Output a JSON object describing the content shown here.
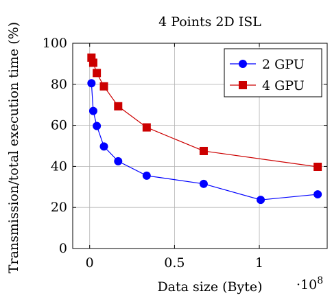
{
  "chart_data": {
    "type": "line",
    "title": "4 Points 2D ISL",
    "xlabel": "Data size (Byte)",
    "ylabel": "Transmission/total execution time (%)",
    "x_multiplier": "·10",
    "x_multiplier_exp": "8",
    "xlim": [
      -0.1,
      1.4
    ],
    "ylim": [
      0,
      100
    ],
    "xticks": [
      0,
      0.5,
      1
    ],
    "xtick_labels": [
      "0",
      "0.5",
      "1"
    ],
    "yticks": [
      0,
      20,
      40,
      60,
      80,
      100
    ],
    "ytick_labels": [
      "0",
      "20",
      "40",
      "60",
      "80",
      "100"
    ],
    "grid": true,
    "legend_position": "top-right",
    "series": [
      {
        "name": "2 GPU",
        "color": "#0000ff",
        "marker": "circle",
        "x": [
          0.0105,
          0.021,
          0.042,
          0.084,
          0.168,
          0.336,
          0.672,
          1.008,
          1.344
        ],
        "y": [
          80.5,
          67,
          59.7,
          49.7,
          42.5,
          35.5,
          31.5,
          23.7,
          26.4
        ]
      },
      {
        "name": "4 GPU",
        "color": "#cc0000",
        "marker": "square",
        "x": [
          0.0105,
          0.021,
          0.042,
          0.084,
          0.168,
          0.336,
          0.672,
          1.344
        ],
        "y": [
          93,
          90.5,
          85.5,
          79,
          69.3,
          59,
          47.5,
          39.8
        ]
      }
    ]
  }
}
